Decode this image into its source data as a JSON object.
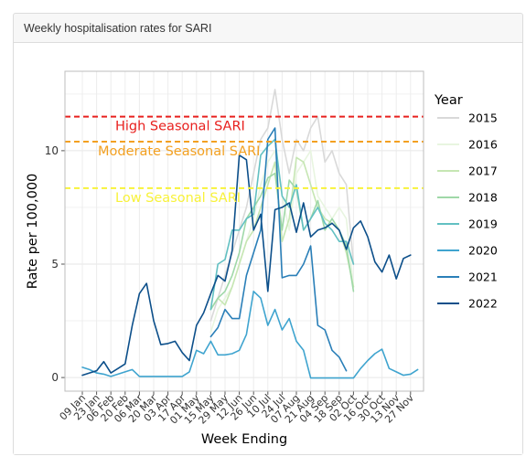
{
  "panel": {
    "title": "Weekly hospitalisation rates for SARI"
  },
  "chart_data": {
    "type": "line",
    "xlabel": "Week Ending",
    "ylabel": "Rate per 100,000",
    "ylim": [
      -0.6,
      13.5
    ],
    "yticks": [
      0,
      5,
      10
    ],
    "x_ticks": [
      "09 Jan",
      "23 Jan",
      "06 Feb",
      "20 Feb",
      "06 Mar",
      "20 Mar",
      "03 Apr",
      "17 Apr",
      "01 May",
      "15 May",
      "29 May",
      "12 Jun",
      "26 Jun",
      "10 Jul",
      "24 Jul",
      "07 Aug",
      "21 Aug",
      "04 Sep",
      "18 Sep",
      "02 Oct",
      "16 Oct",
      "30 Oct",
      "13 Nov",
      "27 Nov"
    ],
    "grid": true,
    "legend": {
      "title": "Year",
      "position": "right"
    },
    "thresholds": [
      {
        "label": "High Seasonal SARI",
        "value": 11.5,
        "color": "#e8201e"
      },
      {
        "label": "Moderate Seasonal SARI",
        "value": 10.4,
        "color": "#f3a020"
      },
      {
        "label": "Low Seasonal SARI",
        "value": 8.35,
        "color": "#f8f23a"
      }
    ],
    "series": [
      {
        "name": "2015",
        "color": "#d9d9d9",
        "week_start": 18,
        "values": [
          2.5,
          3.5,
          4.5,
          5.5,
          6.5,
          7.5,
          9,
          10.5,
          11,
          12.7,
          10.5,
          9,
          10.5,
          10,
          11,
          11.5,
          9.5,
          10,
          9,
          8.5,
          5
        ]
      },
      {
        "name": "2016",
        "color": "#e8f5e0",
        "week_start": 18,
        "values": [
          2,
          3,
          3.5,
          4,
          5,
          6,
          7,
          8.5,
          9.5,
          10,
          8,
          6.5,
          9,
          9.5,
          10,
          8,
          7.5,
          7,
          7.5,
          7,
          4
        ]
      },
      {
        "name": "2017",
        "color": "#c6e6b3",
        "week_start": 18,
        "values": [
          3,
          3.5,
          3.2,
          4,
          5,
          6,
          6.5,
          7.5,
          8.5,
          9.5,
          6,
          7,
          9.7,
          9.5,
          8.5,
          7.5,
          7,
          6.8,
          6.5,
          5.5,
          4
        ]
      },
      {
        "name": "2018",
        "color": "#9fd8a8",
        "week_start": 18,
        "values": [
          3,
          3.5,
          3.8,
          4.5,
          5.5,
          7,
          7.5,
          8,
          8.8,
          9,
          6.5,
          8.7,
          8.3,
          6.5,
          7,
          7.8,
          6.5,
          7,
          6.5,
          5.8,
          3.8
        ]
      },
      {
        "name": "2019",
        "color": "#62c0c2",
        "week_start": 18,
        "values": [
          3,
          5,
          5.2,
          6.5,
          6.5,
          7,
          7.2,
          9.8,
          10.2,
          10.5,
          8,
          7.5,
          8.5,
          6.5,
          7,
          7.5,
          6.8,
          6.5,
          6,
          6,
          5
        ]
      },
      {
        "name": "2020",
        "color": "#3fa4cf",
        "week_start": 0,
        "values": [
          0.45,
          0.35,
          0.2,
          0.15,
          0.05,
          0.15,
          0.25,
          0.35,
          0.05,
          0.05,
          0.05,
          0.05,
          0.05,
          0.05,
          0.05,
          0.25,
          1.2,
          1.05,
          1.6,
          1,
          1,
          1.05,
          1.2,
          1.9,
          3.8,
          3.5,
          2.3,
          3,
          2.1,
          2.6,
          1.6,
          1.2,
          -0.02,
          -0.02,
          -0.02,
          -0.02,
          -0.02,
          -0.02,
          -0.02,
          0.4,
          0.75,
          1.05,
          1.25,
          0.4,
          0.25,
          0.1,
          0.15,
          0.35
        ]
      },
      {
        "name": "2021",
        "color": "#2a7fb8",
        "week_start": 18,
        "values": [
          1.8,
          2.2,
          3,
          2.6,
          2.6,
          4.5,
          5.5,
          6.5,
          10.5,
          11,
          4.4,
          4.5,
          4.5,
          5,
          5.8,
          2.3,
          2.1,
          1.2,
          0.9,
          0.3
        ]
      },
      {
        "name": "2022",
        "color": "#0c4f8a",
        "week_start": 0,
        "values": [
          0.1,
          0.2,
          0.3,
          0.7,
          0.2,
          0.4,
          0.6,
          2.3,
          3.7,
          4.15,
          2.5,
          1.45,
          1.5,
          1.6,
          1.1,
          0.75,
          2.3,
          2.85,
          3.7,
          4.5,
          4.25,
          5.6,
          9.8,
          9.6,
          6.5,
          7.2,
          3.8,
          7.4,
          7.5,
          7.7,
          6.4,
          7.7,
          6.2,
          6.5,
          6.6,
          6.8,
          6.5,
          5.65,
          6.6,
          6.9,
          6.2,
          5.1,
          4.65,
          5.4,
          4.35,
          5.25,
          5.4
        ]
      }
    ]
  }
}
